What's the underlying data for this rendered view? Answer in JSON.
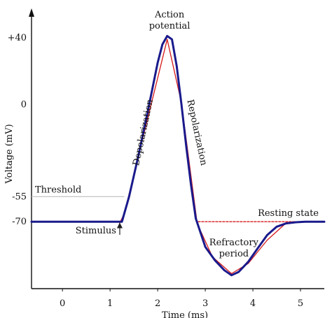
{
  "chart_data": {
    "type": "line",
    "xlabel": "Time (ms)",
    "ylabel": "Voltage (mV)",
    "x_ticks": [
      0,
      1,
      2,
      3,
      4,
      5
    ],
    "y_ticks": [
      {
        "value": 40,
        "label": "+40"
      },
      {
        "value": 0,
        "label": "0"
      },
      {
        "value": -55,
        "label": "-55"
      },
      {
        "value": -70,
        "label": "-70"
      }
    ],
    "xlim": [
      -0.65,
      5.5
    ],
    "ylim": [
      -110,
      55
    ],
    "grid": false,
    "threshold": {
      "value": -55,
      "label": "Threshold"
    },
    "resting": {
      "value": -70,
      "label": "Resting state"
    },
    "series": [
      {
        "color": "#1a1a8c",
        "x": [
          -0.65,
          1.25,
          1.4,
          1.6,
          1.8,
          2.0,
          2.1,
          2.2,
          2.3,
          2.4,
          2.5,
          2.6,
          2.7,
          2.8,
          3.0,
          3.2,
          3.4,
          3.55,
          3.7,
          3.9,
          4.1,
          4.3,
          4.5,
          4.7,
          4.9,
          5.1,
          5.5
        ],
        "y": [
          -70,
          -70,
          -55,
          -30,
          -3,
          25,
          36,
          41,
          39,
          23,
          0,
          -25,
          -48,
          -68,
          -85,
          -93,
          -99,
          -102,
          -100,
          -94,
          -86,
          -78,
          -73,
          -71,
          -70.3,
          -70,
          -70
        ]
      },
      {
        "color": "#d61a1a",
        "x": [
          1.2,
          1.3,
          2.2,
          2.5,
          2.83,
          3.15,
          3.55,
          3.9,
          4.3,
          4.65
        ],
        "y": [
          -71,
          -65,
          39,
          1,
          -71,
          -91,
          -101,
          -95,
          -81,
          -72
        ]
      },
      {
        "color": "#d61a1a",
        "style": "dashed",
        "x": [
          2.85,
          5.5
        ],
        "y": [
          -70,
          -70
        ]
      }
    ],
    "annotations": [
      {
        "text": "Action potential",
        "lines": [
          "Action",
          "potential"
        ],
        "x": 2.25,
        "y": 52
      },
      {
        "text": "Depolarization",
        "x": 1.75,
        "y": -17,
        "rotate": -78
      },
      {
        "text": "Repolarization",
        "x": 2.77,
        "y": -17,
        "rotate": 78
      },
      {
        "text": "Stimulus",
        "x": 1.13,
        "y": -77,
        "arrow": true
      },
      {
        "text": "Refractory period",
        "lines": [
          "Refractory",
          "period"
        ],
        "x": 3.6,
        "y": -84
      }
    ]
  }
}
